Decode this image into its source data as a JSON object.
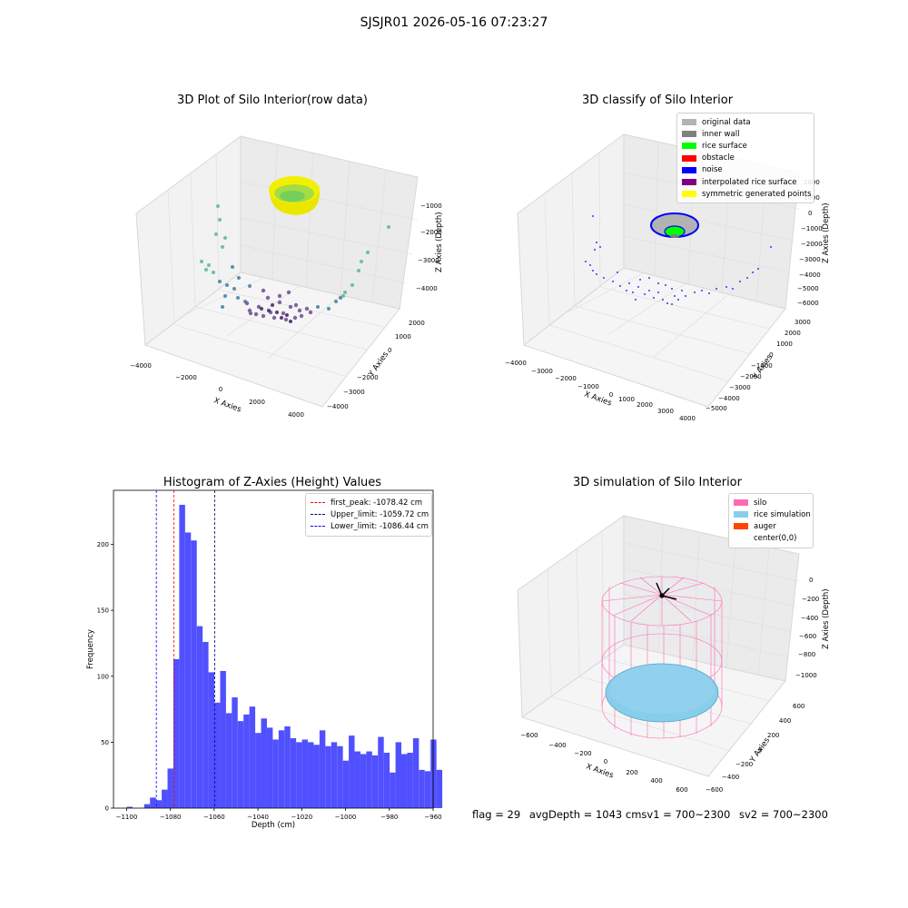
{
  "figure": {
    "suptitle": "SJSJR01 2026-05-16 07:23:27"
  },
  "panels": {
    "raw": {
      "title": "3D Plot of Silo Interior(row data)",
      "xlabel": "X Axies",
      "ylabel": "Y Axies",
      "zlabel": "Z Axies (Depth)",
      "xticks": [
        "−4000",
        "−2000",
        "0",
        "2000",
        "4000"
      ],
      "yticks": [
        "2000",
        "1000",
        "0",
        "−1000",
        "−2000",
        "−3000",
        "−4000"
      ],
      "zticks": [
        "−1000",
        "−2000",
        "−3000",
        "−4000"
      ]
    },
    "classify": {
      "title": "3D classify of Silo Interior",
      "xlabel": "X Axies",
      "ylabel": "Y Axies",
      "zlabel": "Z Axies (Depth)",
      "xticks": [
        "−4000",
        "−3000",
        "−2000",
        "−1000",
        "0",
        "1000",
        "2000",
        "3000",
        "4000"
      ],
      "yticks": [
        "3000",
        "2000",
        "1000",
        "0",
        "−1000",
        "−2000",
        "−3000",
        "−4000",
        "−5000"
      ],
      "zticks": [
        "2000",
        "1000",
        "0",
        "−1000",
        "−2000",
        "−3000",
        "−4000",
        "−5000",
        "−6000"
      ],
      "legend": [
        {
          "label": "original data",
          "color": "#b2b2b2"
        },
        {
          "label": "inner wall",
          "color": "#808080"
        },
        {
          "label": "rice surface",
          "color": "#00ff00"
        },
        {
          "label": "obstacle",
          "color": "#ff0000"
        },
        {
          "label": "noise",
          "color": "#0000ff"
        },
        {
          "label": "interpolated rice surface",
          "color": "#800080"
        },
        {
          "label": "symmetric generated points",
          "color": "#ffff00"
        }
      ]
    },
    "simulation": {
      "title": "3D simulation of Silo Interior",
      "xlabel": "X Axies",
      "ylabel": "Y Axies",
      "zlabel": "Z Axies (Depth)",
      "xticks": [
        "−600",
        "−400",
        "−200",
        "0",
        "200",
        "400",
        "600"
      ],
      "yticks": [
        "600",
        "400",
        "200",
        "0",
        "−200",
        "−400",
        "−600"
      ],
      "zticks": [
        "0",
        "−200",
        "−400",
        "−600",
        "−800",
        "−1000"
      ],
      "legend": [
        {
          "label": "silo",
          "color": "#ff69b4"
        },
        {
          "label": "rice simulation",
          "color": "#87ceeb"
        },
        {
          "label": "auger",
          "color": "#ff4500"
        },
        {
          "label": "center(0,0)",
          "color": "#ffffff"
        }
      ]
    }
  },
  "status": {
    "flag": "flag = 29",
    "avg_depth": "avgDepth = 1043 cmsv1 = 700~2300",
    "sv2": "sv2 = 700~2300"
  },
  "chart_data": {
    "type": "bar",
    "title": "Histogram of Z-Axies (Height) Values",
    "xlabel": "Depth (cm)",
    "ylabel": "Frequency",
    "xlim": [
      -1106,
      -960
    ],
    "ylim": [
      0,
      241
    ],
    "xticks": [
      -1100,
      -1080,
      -1060,
      -1040,
      -1020,
      -1000,
      -980,
      -960
    ],
    "yticks": [
      0,
      50,
      100,
      150,
      200
    ],
    "bin_start": -1100.0,
    "bin_width": 2.67,
    "bar_color": "#5050ff",
    "values": [
      1,
      0,
      0,
      3,
      8,
      6,
      14,
      30,
      113,
      230,
      209,
      203,
      138,
      126,
      103,
      80,
      104,
      72,
      84,
      66,
      71,
      77,
      57,
      68,
      61,
      52,
      59,
      62,
      53,
      50,
      52,
      50,
      48,
      59,
      47,
      50,
      47,
      36,
      55,
      43,
      41,
      43,
      40,
      54,
      42,
      27,
      50,
      41,
      42,
      53,
      29,
      28,
      52,
      29
    ],
    "vlines": [
      {
        "label": "first_peak: -1078.42 cm",
        "x": -1078.42,
        "color": "#ff0000"
      },
      {
        "label": "Upper_limit: -1059.72 cm",
        "x": -1059.72,
        "color": "#000080"
      },
      {
        "label": "Lower_limit: -1086.44 cm",
        "x": -1086.44,
        "color": "#0000ff"
      }
    ]
  }
}
